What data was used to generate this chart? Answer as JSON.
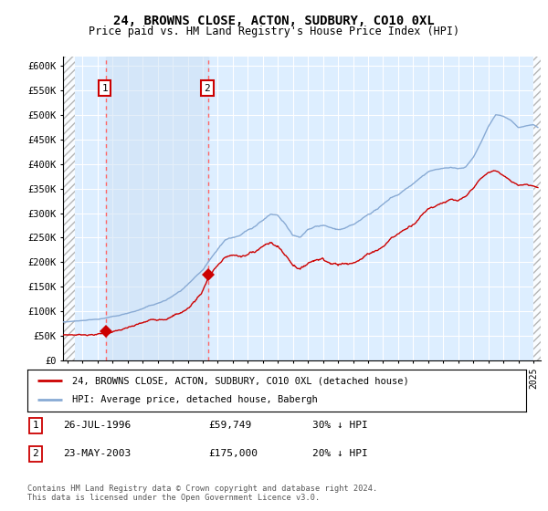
{
  "title": "24, BROWNS CLOSE, ACTON, SUDBURY, CO10 0XL",
  "subtitle": "Price paid vs. HM Land Registry's House Price Index (HPI)",
  "ylabel_ticks": [
    "£0",
    "£50K",
    "£100K",
    "£150K",
    "£200K",
    "£250K",
    "£300K",
    "£350K",
    "£400K",
    "£450K",
    "£500K",
    "£550K",
    "£600K"
  ],
  "ytick_values": [
    0,
    50000,
    100000,
    150000,
    200000,
    250000,
    300000,
    350000,
    400000,
    450000,
    500000,
    550000,
    600000
  ],
  "ylim": [
    0,
    620000
  ],
  "xlim_start": 1993.7,
  "xlim_end": 2025.5,
  "sale1_year": 1996.57,
  "sale1_price": 59749,
  "sale2_year": 2003.39,
  "sale2_price": 175000,
  "sale_color": "#cc0000",
  "hpi_color": "#88aad4",
  "background_color": "#ddeeff",
  "grid_color": "#ffffff",
  "legend1_label": "24, BROWNS CLOSE, ACTON, SUDBURY, CO10 0XL (detached house)",
  "legend2_label": "HPI: Average price, detached house, Babergh",
  "footnote": "Contains HM Land Registry data © Crown copyright and database right 2024.\nThis data is licensed under the Open Government Licence v3.0.",
  "table_row1": [
    "1",
    "26-JUL-1996",
    "£59,749",
    "30% ↓ HPI"
  ],
  "table_row2": [
    "2",
    "23-MAY-2003",
    "£175,000",
    "20% ↓ HPI"
  ],
  "xtick_years": [
    1994,
    1995,
    1996,
    1997,
    1998,
    1999,
    2000,
    2001,
    2002,
    2003,
    2004,
    2005,
    2006,
    2007,
    2008,
    2009,
    2010,
    2011,
    2012,
    2013,
    2014,
    2015,
    2016,
    2017,
    2018,
    2019,
    2020,
    2021,
    2022,
    2023,
    2024,
    2025
  ],
  "hpi_anchors": [
    [
      1993.7,
      78000
    ],
    [
      1994.5,
      80000
    ],
    [
      1995.5,
      83000
    ],
    [
      1996.5,
      87000
    ],
    [
      1997.5,
      92000
    ],
    [
      1998.5,
      100000
    ],
    [
      1999.5,
      110000
    ],
    [
      2000.5,
      120000
    ],
    [
      2001.5,
      138000
    ],
    [
      2002.5,
      162000
    ],
    [
      2003.0,
      175000
    ],
    [
      2003.5,
      195000
    ],
    [
      2004.0,
      215000
    ],
    [
      2004.5,
      235000
    ],
    [
      2005.0,
      240000
    ],
    [
      2005.5,
      242000
    ],
    [
      2006.0,
      252000
    ],
    [
      2006.5,
      262000
    ],
    [
      2007.0,
      275000
    ],
    [
      2007.5,
      285000
    ],
    [
      2008.0,
      280000
    ],
    [
      2008.5,
      260000
    ],
    [
      2009.0,
      238000
    ],
    [
      2009.5,
      232000
    ],
    [
      2010.0,
      248000
    ],
    [
      2010.5,
      256000
    ],
    [
      2011.0,
      258000
    ],
    [
      2011.5,
      252000
    ],
    [
      2012.0,
      248000
    ],
    [
      2012.5,
      250000
    ],
    [
      2013.0,
      255000
    ],
    [
      2013.5,
      263000
    ],
    [
      2014.0,
      275000
    ],
    [
      2014.5,
      285000
    ],
    [
      2015.0,
      295000
    ],
    [
      2015.5,
      310000
    ],
    [
      2016.0,
      318000
    ],
    [
      2016.5,
      330000
    ],
    [
      2017.0,
      342000
    ],
    [
      2017.5,
      355000
    ],
    [
      2018.0,
      365000
    ],
    [
      2018.5,
      372000
    ],
    [
      2019.0,
      375000
    ],
    [
      2019.5,
      378000
    ],
    [
      2020.0,
      375000
    ],
    [
      2020.5,
      380000
    ],
    [
      2021.0,
      400000
    ],
    [
      2021.5,
      430000
    ],
    [
      2022.0,
      465000
    ],
    [
      2022.5,
      490000
    ],
    [
      2023.0,
      488000
    ],
    [
      2023.5,
      482000
    ],
    [
      2024.0,
      468000
    ],
    [
      2024.5,
      472000
    ],
    [
      2025.0,
      475000
    ],
    [
      2025.3,
      470000
    ]
  ],
  "sale_anchors": [
    [
      1993.7,
      52000
    ],
    [
      1994.5,
      53000
    ],
    [
      1995.5,
      54500
    ],
    [
      1996.0,
      56000
    ],
    [
      1996.57,
      59749
    ],
    [
      1997.0,
      62000
    ],
    [
      1997.5,
      65000
    ],
    [
      1998.0,
      68000
    ],
    [
      1998.5,
      72000
    ],
    [
      1999.0,
      76000
    ],
    [
      1999.5,
      80000
    ],
    [
      2000.0,
      84000
    ],
    [
      2000.5,
      89000
    ],
    [
      2001.0,
      95000
    ],
    [
      2001.5,
      102000
    ],
    [
      2002.0,
      112000
    ],
    [
      2002.5,
      128000
    ],
    [
      2003.0,
      148000
    ],
    [
      2003.39,
      175000
    ],
    [
      2003.5,
      180000
    ],
    [
      2004.0,
      198000
    ],
    [
      2004.5,
      212000
    ],
    [
      2005.0,
      218000
    ],
    [
      2005.5,
      215000
    ],
    [
      2006.0,
      218000
    ],
    [
      2006.5,
      228000
    ],
    [
      2007.0,
      242000
    ],
    [
      2007.5,
      248000
    ],
    [
      2008.0,
      240000
    ],
    [
      2008.5,
      222000
    ],
    [
      2009.0,
      205000
    ],
    [
      2009.5,
      198000
    ],
    [
      2010.0,
      210000
    ],
    [
      2010.5,
      218000
    ],
    [
      2011.0,
      220000
    ],
    [
      2011.5,
      215000
    ],
    [
      2012.0,
      210000
    ],
    [
      2012.5,
      212000
    ],
    [
      2013.0,
      218000
    ],
    [
      2013.5,
      225000
    ],
    [
      2014.0,
      235000
    ],
    [
      2014.5,
      245000
    ],
    [
      2015.0,
      255000
    ],
    [
      2015.5,
      268000
    ],
    [
      2016.0,
      278000
    ],
    [
      2016.5,
      290000
    ],
    [
      2017.0,
      302000
    ],
    [
      2017.5,
      318000
    ],
    [
      2018.0,
      332000
    ],
    [
      2018.5,
      340000
    ],
    [
      2019.0,
      348000
    ],
    [
      2019.5,
      352000
    ],
    [
      2020.0,
      348000
    ],
    [
      2020.5,
      352000
    ],
    [
      2021.0,
      368000
    ],
    [
      2021.5,
      385000
    ],
    [
      2022.0,
      395000
    ],
    [
      2022.5,
      398000
    ],
    [
      2023.0,
      388000
    ],
    [
      2023.5,
      375000
    ],
    [
      2024.0,
      368000
    ],
    [
      2024.5,
      372000
    ],
    [
      2025.0,
      370000
    ],
    [
      2025.3,
      368000
    ]
  ]
}
